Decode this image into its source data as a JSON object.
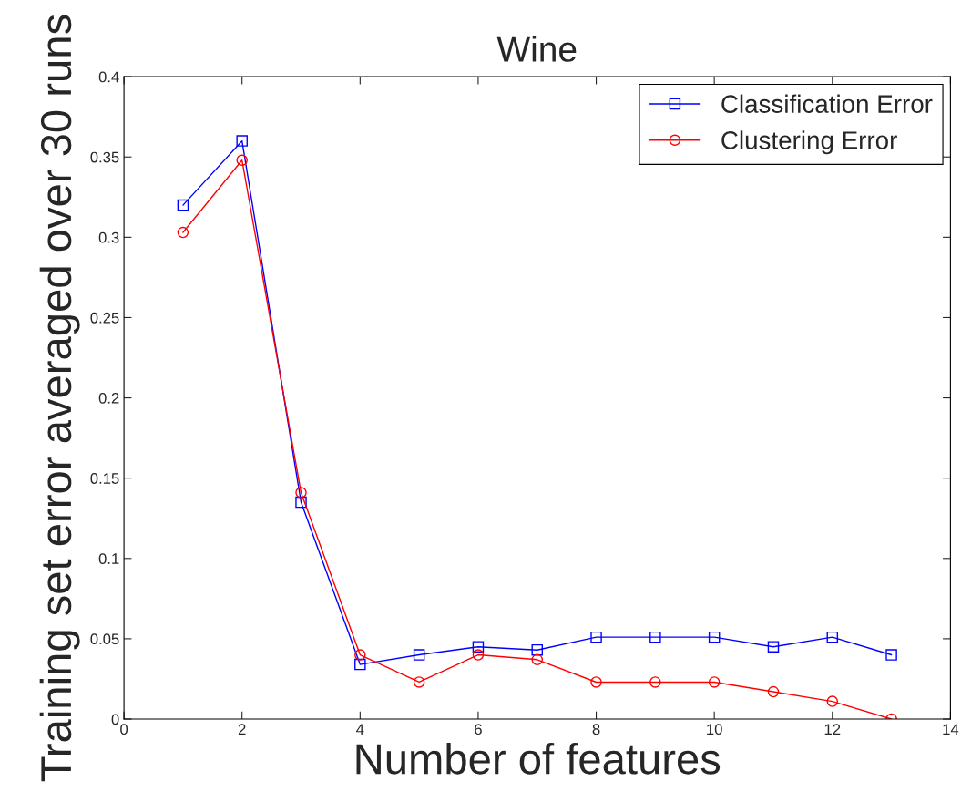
{
  "chart_data": {
    "type": "line",
    "title": "Wine",
    "xlabel": "Number of features",
    "ylabel": "Training set error averaged over 30 runs",
    "x": [
      1,
      2,
      3,
      4,
      5,
      6,
      7,
      8,
      9,
      10,
      11,
      12,
      13
    ],
    "series": [
      {
        "name": "Classification Error",
        "color": "#0000ff",
        "marker": "square",
        "values": [
          0.32,
          0.36,
          0.135,
          0.034,
          0.04,
          0.045,
          0.043,
          0.051,
          0.051,
          0.051,
          0.045,
          0.051,
          0.04
        ]
      },
      {
        "name": "Clustering Error",
        "color": "#ff0000",
        "marker": "circle",
        "values": [
          0.303,
          0.348,
          0.141,
          0.04,
          0.023,
          0.04,
          0.037,
          0.023,
          0.023,
          0.023,
          0.017,
          0.011,
          0
        ]
      }
    ],
    "xlim": [
      0,
      14
    ],
    "xticks": [
      0,
      2,
      4,
      6,
      8,
      10,
      12,
      14
    ],
    "ylim": [
      0,
      0.4
    ],
    "yticks": [
      0,
      0.05,
      0.1,
      0.15,
      0.2,
      0.25,
      0.3,
      0.35,
      0.4
    ],
    "grid": false,
    "legend": "top right",
    "line_style": "solid"
  }
}
